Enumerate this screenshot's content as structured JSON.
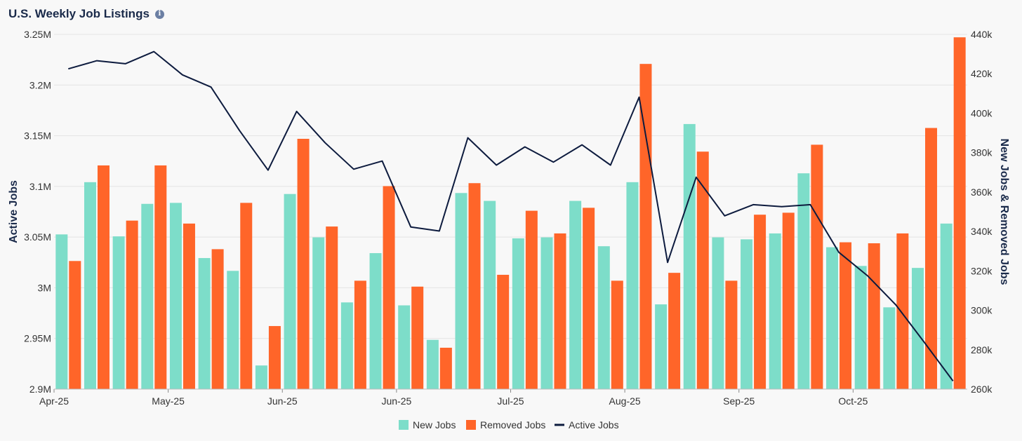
{
  "chart_data": {
    "type": "bar",
    "title": "U.S. Weekly Job Listings",
    "info_icon": "info-icon",
    "ylabel_left": "Active Jobs",
    "ylabel_right": "New Jobs & Removed Jobs",
    "ylim_left": [
      2900000,
      3250000
    ],
    "ylim_right": [
      260000,
      440000
    ],
    "yticks_left": [
      {
        "value": 2900000,
        "label": "2.9M"
      },
      {
        "value": 2950000,
        "label": "2.95M"
      },
      {
        "value": 3000000,
        "label": "3M"
      },
      {
        "value": 3050000,
        "label": "3.05M"
      },
      {
        "value": 3100000,
        "label": "3.1M"
      },
      {
        "value": 3150000,
        "label": "3.15M"
      },
      {
        "value": 3200000,
        "label": "3.2M"
      },
      {
        "value": 3250000,
        "label": "3.25M"
      }
    ],
    "yticks_right": [
      {
        "value": 260000,
        "label": "260k"
      },
      {
        "value": 280000,
        "label": "280k"
      },
      {
        "value": 300000,
        "label": "300k"
      },
      {
        "value": 320000,
        "label": "320k"
      },
      {
        "value": 340000,
        "label": "340k"
      },
      {
        "value": 360000,
        "label": "360k"
      },
      {
        "value": 380000,
        "label": "380k"
      },
      {
        "value": 400000,
        "label": "400k"
      },
      {
        "value": 420000,
        "label": "420k"
      },
      {
        "value": 440000,
        "label": "440k"
      }
    ],
    "xticks": [
      {
        "index": 0,
        "label": "Apr-25"
      },
      {
        "index": 4,
        "label": "May-25"
      },
      {
        "index": 8,
        "label": "Jun-25"
      },
      {
        "index": 12,
        "label": "Jun-25"
      },
      {
        "index": 16,
        "label": "Jul-25"
      },
      {
        "index": 20,
        "label": "Aug-25"
      },
      {
        "index": 24,
        "label": "Sep-25"
      },
      {
        "index": 28,
        "label": "Oct-25"
      }
    ],
    "grid": true,
    "legend_position": "bottom-center",
    "series": [
      {
        "name": "New Jobs",
        "kind": "bar",
        "axis": "right",
        "color": "#7dddc9",
        "values": [
          338500,
          365000,
          337500,
          354000,
          354500,
          326500,
          320000,
          272000,
          359000,
          337000,
          304000,
          329000,
          302500,
          285000,
          359500,
          355500,
          336500,
          337000,
          355500,
          332500,
          365000,
          303000,
          394500,
          337000,
          336000,
          339000,
          369500,
          332000,
          322500,
          301500,
          321500,
          344000
        ]
      },
      {
        "name": "Removed Jobs",
        "kind": "bar",
        "axis": "right",
        "color": "#ff6529",
        "values": [
          325000,
          373500,
          345500,
          373500,
          344000,
          331000,
          354500,
          292000,
          387000,
          342500,
          315000,
          363000,
          312000,
          281000,
          364500,
          318000,
          350500,
          339000,
          352000,
          315000,
          425000,
          319000,
          380500,
          315000,
          348500,
          349500,
          384000,
          334500,
          334000,
          339000,
          392500,
          438500
        ]
      },
      {
        "name": "Active Jobs",
        "kind": "line",
        "axis": "left",
        "color": "#0d1b3e",
        "values": [
          3216000,
          3224000,
          3221000,
          3233000,
          3210000,
          3198000,
          3155000,
          3116000,
          3174000,
          3143000,
          3117000,
          3125000,
          3060000,
          3056000,
          3148000,
          3121000,
          3139000,
          3124000,
          3141000,
          3121000,
          3188000,
          3025000,
          3109000,
          3071000,
          3082000,
          3080000,
          3082000,
          3035000,
          3012000,
          2983000,
          2946000,
          2908000
        ]
      }
    ]
  }
}
